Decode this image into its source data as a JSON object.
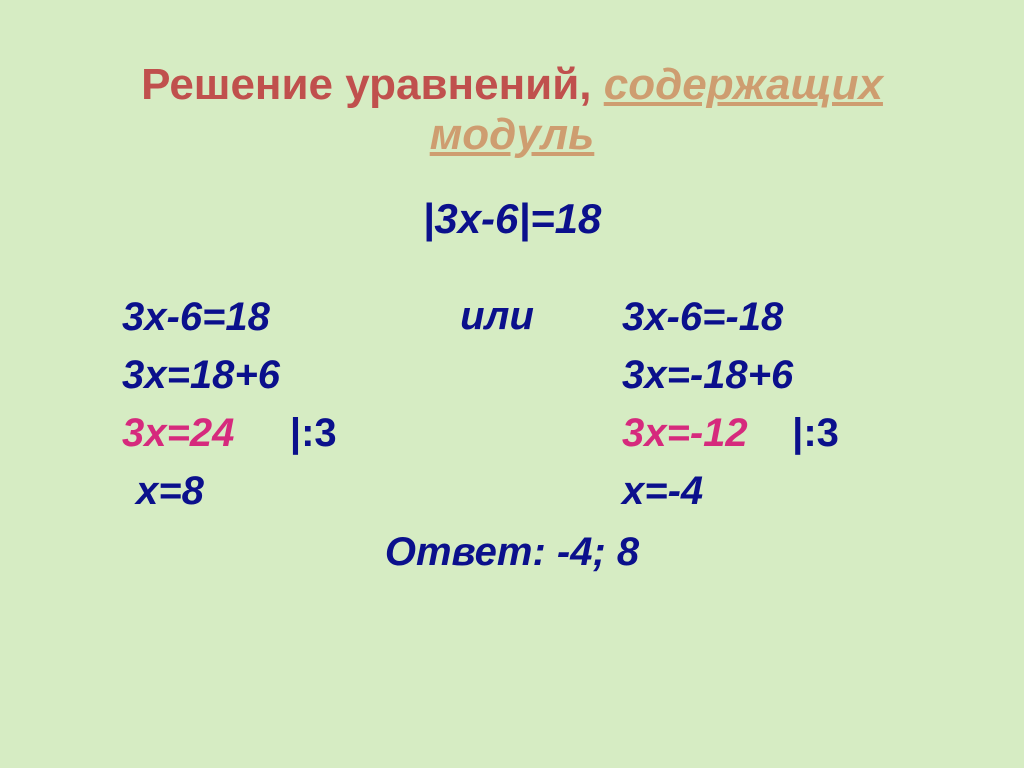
{
  "slide": {
    "title_main": "Решение уравнений, ",
    "title_sub_line1": "содержащих",
    "title_sub_line2": "модуль",
    "main_equation": "|3x-6|=18",
    "or_word": "или",
    "left": {
      "l1": "3x-6=18",
      "l2": "3x=18+6",
      "l3_a": "3x=24",
      "l3_b": "|:3",
      "l4": "x=8"
    },
    "right": {
      "l1": "3x-6=-18",
      "l2": "3x=-18+6",
      "l3_a": "3x=-12",
      "l3_b": "|:3",
      "l4": "x=-4"
    },
    "answer": "Ответ: -4; 8"
  },
  "style": {
    "background_color": "#d6ecc3",
    "title_main_color": "#c0504d",
    "title_sub_color": "#ce9d70",
    "math_color": "#0b108c",
    "highlight_color": "#d62a7d",
    "title_fontsize": 44,
    "body_fontsize": 40,
    "font_family": "Arial"
  }
}
